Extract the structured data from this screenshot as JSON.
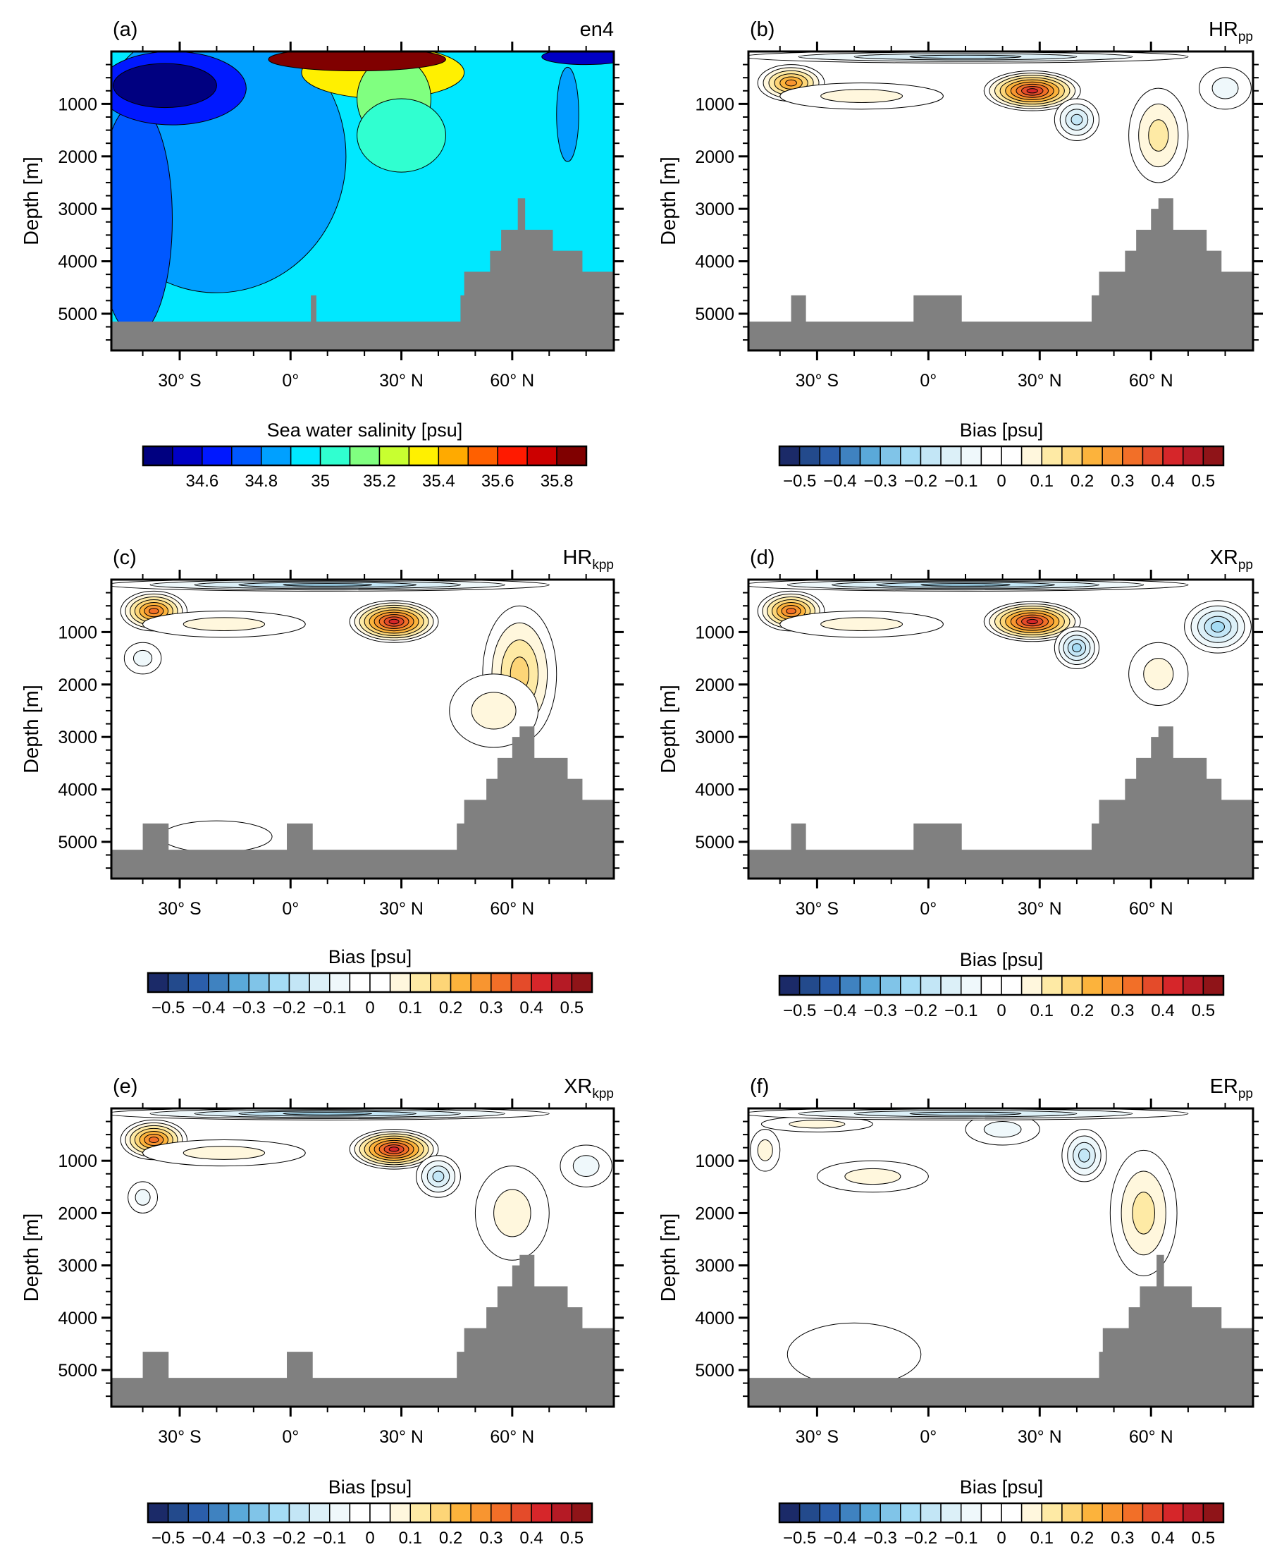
{
  "chart_data": {
    "type": "heatmap",
    "description_axes": {
      "xlabel": "",
      "ylabel": "Depth [m]",
      "xlim": [
        -48.5,
        87.5
      ],
      "ylim": [
        5700,
        0
      ],
      "xticks": [
        {
          "v": -30,
          "label": "30° S"
        },
        {
          "v": 0,
          "label": "0°"
        },
        {
          "v": 30,
          "label": "30° N"
        },
        {
          "v": 60,
          "label": "60° N"
        }
      ],
      "yticks": [
        {
          "v": 1000,
          "label": "1000"
        },
        {
          "v": 2000,
          "label": "2000"
        },
        {
          "v": 3000,
          "label": "3000"
        },
        {
          "v": 4000,
          "label": "4000"
        },
        {
          "v": 5000,
          "label": "5000"
        }
      ]
    },
    "scales": {
      "salinity": {
        "title": "Sea water salinity [psu]",
        "boundaries": [
          34.5,
          34.6,
          34.7,
          34.8,
          34.9,
          35.0,
          35.1,
          35.2,
          35.3,
          35.4,
          35.5,
          35.6,
          35.7,
          35.8
        ],
        "labels": [
          {
            "i": 1,
            "t": "34.6"
          },
          {
            "i": 3,
            "t": "34.8"
          },
          {
            "i": 5,
            "t": "35"
          },
          {
            "i": 7,
            "t": "35.2"
          },
          {
            "i": 9,
            "t": "35.4"
          },
          {
            "i": 11,
            "t": "35.6"
          },
          {
            "i": 13,
            "t": "35.8"
          }
        ],
        "colors": [
          "#000080",
          "#0000c4",
          "#0018ff",
          "#0058ff",
          "#00a0ff",
          "#00e8ff",
          "#30ffd0",
          "#80ff80",
          "#c8ff30",
          "#fff000",
          "#ffaa00",
          "#ff6000",
          "#ff1a00",
          "#cc0000",
          "#800000"
        ]
      },
      "bias": {
        "title": "Bias [psu]",
        "boundaries": [
          -0.5,
          -0.45,
          -0.4,
          -0.35,
          -0.3,
          -0.25,
          -0.2,
          -0.15,
          -0.1,
          -0.05,
          0,
          0.05,
          0.1,
          0.15,
          0.2,
          0.25,
          0.3,
          0.35,
          0.4,
          0.45,
          0.5
        ],
        "labels": [
          {
            "i": 0,
            "t": "−0.5"
          },
          {
            "i": 2,
            "t": "−0.4"
          },
          {
            "i": 4,
            "t": "−0.3"
          },
          {
            "i": 6,
            "t": "−0.2"
          },
          {
            "i": 8,
            "t": "−0.1"
          },
          {
            "i": 10,
            "t": "0"
          },
          {
            "i": 12,
            "t": "0.1"
          },
          {
            "i": 14,
            "t": "0.2"
          },
          {
            "i": 16,
            "t": "0.3"
          },
          {
            "i": 18,
            "t": "0.4"
          },
          {
            "i": 20,
            "t": "0.5"
          }
        ],
        "colors": [
          "#1b2a68",
          "#234a8c",
          "#2b5eaa",
          "#3f82c0",
          "#5aa9d9",
          "#80c4e8",
          "#a5dcf5",
          "#c3e6f6",
          "#dcf0f8",
          "#eff8fb",
          "#ffffff",
          "#ffffff",
          "#fff7dd",
          "#feeaa5",
          "#fdd577",
          "#fcb33c",
          "#f89530",
          "#f26f28",
          "#e44b2a",
          "#d6262a",
          "#b51a25",
          "#8f1418"
        ]
      }
    },
    "panels": [
      {
        "letter": "(a)",
        "name": "en4",
        "sub": "",
        "scale": "salinity",
        "background": 34.95,
        "features": [
          [
            -20,
            2000,
            35,
            2600,
            34.85
          ],
          [
            -42,
            3200,
            10,
            2200,
            34.75
          ],
          [
            -32,
            700,
            20,
            700,
            34.65
          ],
          [
            -34,
            650,
            14,
            420,
            34.45
          ],
          [
            25,
            400,
            22,
            500,
            35.3
          ],
          [
            28,
            900,
            10,
            800,
            35.15
          ],
          [
            30,
            1600,
            12,
            700,
            35.05
          ],
          [
            18,
            150,
            24,
            220,
            35.85
          ],
          [
            75,
            1200,
            3,
            900,
            34.85
          ],
          [
            80,
            100,
            12,
            150,
            34.55
          ]
        ],
        "topo": [
          [
            -48.5,
            5150
          ],
          [
            5.5,
            4650
          ],
          [
            7,
            5150
          ],
          [
            46,
            4650
          ],
          [
            47,
            4200
          ],
          [
            54,
            3800
          ],
          [
            57,
            3400
          ],
          [
            61.5,
            2800
          ],
          [
            63.5,
            3400
          ],
          [
            71,
            3800
          ],
          [
            79,
            4200
          ],
          [
            87.5,
            4200
          ]
        ]
      },
      {
        "letter": "(b)",
        "name": "HR",
        "sub": "pp",
        "scale": "bias",
        "background": 0,
        "features": [
          [
            -37,
            600,
            9,
            350,
            0.3
          ],
          [
            -18,
            850,
            22,
            250,
            0.1
          ],
          [
            28,
            750,
            13,
            380,
            0.45
          ],
          [
            40,
            1300,
            6,
            400,
            -0.2
          ],
          [
            62,
            1600,
            8,
            900,
            0.15
          ],
          [
            10,
            100,
            60,
            120,
            -0.2
          ],
          [
            80,
            700,
            7,
            400,
            -0.1
          ]
        ],
        "topo": [
          [
            -48.5,
            5150
          ],
          [
            -37,
            4650
          ],
          [
            -33,
            5150
          ],
          [
            -4,
            4650
          ],
          [
            9,
            5150
          ],
          [
            44,
            4650
          ],
          [
            46,
            4200
          ],
          [
            53,
            3800
          ],
          [
            56,
            3400
          ],
          [
            60,
            3000
          ],
          [
            62,
            2800
          ],
          [
            66,
            3400
          ],
          [
            70,
            3400
          ],
          [
            75,
            3800
          ],
          [
            79,
            4200
          ],
          [
            87.5,
            4200
          ]
        ]
      },
      {
        "letter": "(c)",
        "name": "HR",
        "sub": "kpp",
        "scale": "bias",
        "background": 0,
        "features": [
          [
            -37,
            600,
            9,
            380,
            0.35
          ],
          [
            -18,
            850,
            22,
            250,
            0.1
          ],
          [
            28,
            800,
            12,
            400,
            0.45
          ],
          [
            -40,
            1500,
            5,
            300,
            -0.1
          ],
          [
            62,
            1800,
            10,
            1300,
            0.2
          ],
          [
            55,
            2500,
            12,
            700,
            0.1
          ],
          [
            10,
            100,
            60,
            120,
            -0.25
          ],
          [
            -20,
            4900,
            15,
            300,
            0.05
          ]
        ],
        "topo": [
          [
            -48.5,
            5150
          ],
          [
            -40,
            4650
          ],
          [
            -33,
            5150
          ],
          [
            -1,
            4650
          ],
          [
            6,
            5150
          ],
          [
            45,
            4650
          ],
          [
            47,
            4200
          ],
          [
            53,
            3800
          ],
          [
            56,
            3400
          ],
          [
            60,
            3000
          ],
          [
            62,
            2800
          ],
          [
            66,
            3400
          ],
          [
            70,
            3400
          ],
          [
            75,
            3800
          ],
          [
            79,
            4200
          ],
          [
            87.5,
            4200
          ]
        ]
      },
      {
        "letter": "(d)",
        "name": "XR",
        "sub": "pp",
        "scale": "bias",
        "background": 0,
        "features": [
          [
            -37,
            600,
            9,
            380,
            0.35
          ],
          [
            -18,
            850,
            22,
            250,
            0.1
          ],
          [
            28,
            800,
            13,
            380,
            0.45
          ],
          [
            40,
            1300,
            6,
            400,
            -0.25
          ],
          [
            78,
            900,
            9,
            500,
            -0.25
          ],
          [
            62,
            1800,
            8,
            600,
            0.1
          ],
          [
            10,
            100,
            60,
            120,
            -0.25
          ]
        ],
        "topo": [
          [
            -48.5,
            5150
          ],
          [
            -37,
            4650
          ],
          [
            -33,
            5150
          ],
          [
            -4,
            4650
          ],
          [
            9,
            5150
          ],
          [
            44,
            4650
          ],
          [
            46,
            4200
          ],
          [
            53,
            3800
          ],
          [
            56,
            3400
          ],
          [
            60,
            3000
          ],
          [
            62,
            2800
          ],
          [
            66,
            3400
          ],
          [
            70,
            3400
          ],
          [
            75,
            3800
          ],
          [
            79,
            4200
          ],
          [
            87.5,
            4200
          ]
        ]
      },
      {
        "letter": "(e)",
        "name": "XR",
        "sub": "kpp",
        "scale": "bias",
        "background": 0,
        "features": [
          [
            -37,
            600,
            9,
            380,
            0.35
          ],
          [
            -18,
            850,
            22,
            250,
            0.1
          ],
          [
            28,
            780,
            12,
            380,
            0.45
          ],
          [
            40,
            1300,
            6,
            400,
            -0.2
          ],
          [
            -40,
            1700,
            4,
            300,
            -0.1
          ],
          [
            60,
            2000,
            10,
            900,
            0.1
          ],
          [
            80,
            1100,
            7,
            400,
            -0.1
          ],
          [
            10,
            100,
            60,
            120,
            -0.25
          ]
        ],
        "topo": [
          [
            -48.5,
            5150
          ],
          [
            -40,
            4650
          ],
          [
            -33,
            5150
          ],
          [
            -1,
            4650
          ],
          [
            6,
            5150
          ],
          [
            45,
            4650
          ],
          [
            47,
            4200
          ],
          [
            53,
            3800
          ],
          [
            56,
            3400
          ],
          [
            60,
            3000
          ],
          [
            62,
            2800
          ],
          [
            66,
            3400
          ],
          [
            70,
            3400
          ],
          [
            75,
            3800
          ],
          [
            79,
            4200
          ],
          [
            87.5,
            4200
          ]
        ]
      },
      {
        "letter": "(f)",
        "name": "ER",
        "sub": "pp",
        "scale": "bias",
        "background": 0,
        "features": [
          [
            -44,
            800,
            4,
            400,
            0.1
          ],
          [
            -15,
            1300,
            15,
            300,
            0.1
          ],
          [
            20,
            400,
            10,
            300,
            -0.1
          ],
          [
            42,
            900,
            6,
            500,
            -0.2
          ],
          [
            58,
            2000,
            9,
            1200,
            0.15
          ],
          [
            -30,
            300,
            15,
            150,
            0.1
          ],
          [
            -20,
            4700,
            18,
            600,
            0.05
          ],
          [
            10,
            100,
            60,
            120,
            -0.2
          ]
        ],
        "topo": [
          [
            -48.5,
            5150
          ],
          [
            46,
            4650
          ],
          [
            47,
            4200
          ],
          [
            54,
            3800
          ],
          [
            57,
            3400
          ],
          [
            61.5,
            2800
          ],
          [
            63.5,
            3400
          ],
          [
            71,
            3800
          ],
          [
            79,
            4200
          ],
          [
            87.5,
            4200
          ]
        ]
      }
    ]
  }
}
